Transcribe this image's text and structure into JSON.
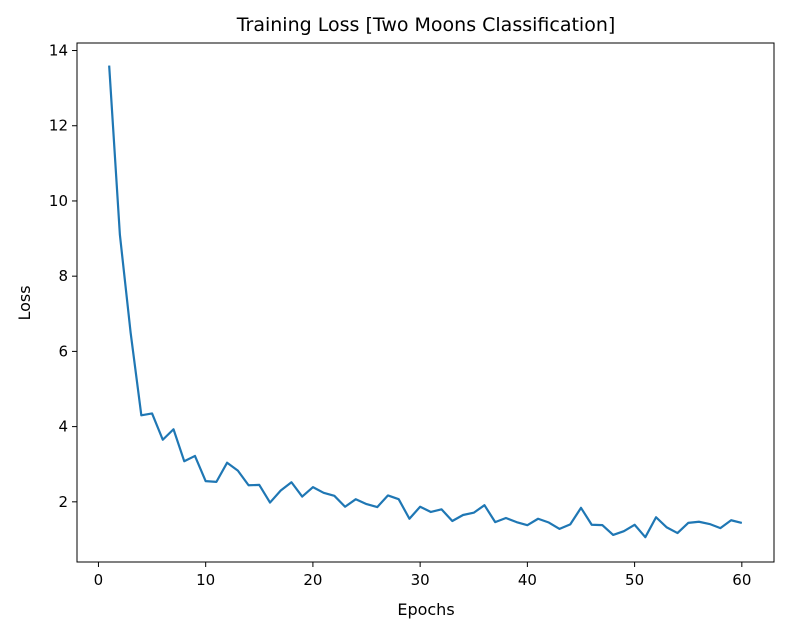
{
  "chart_data": {
    "type": "line",
    "title": "Training Loss [Two Moons Classification]",
    "xlabel": "Epochs",
    "ylabel": "Loss",
    "xlim": [
      -2.0,
      63.0
    ],
    "ylim": [
      0.4,
      14.2
    ],
    "xticks": [
      0,
      10,
      20,
      30,
      40,
      50,
      60
    ],
    "yticks": [
      2,
      4,
      6,
      8,
      10,
      12,
      14
    ],
    "grid": false,
    "series": [
      {
        "color": "#1f77b4",
        "x": [
          1,
          2,
          3,
          4,
          5,
          6,
          7,
          8,
          9,
          10,
          11,
          12,
          13,
          14,
          15,
          16,
          17,
          18,
          19,
          20,
          21,
          22,
          23,
          24,
          25,
          26,
          27,
          28,
          29,
          30,
          31,
          32,
          33,
          34,
          35,
          36,
          37,
          38,
          39,
          40,
          41,
          42,
          43,
          44,
          45,
          46,
          47,
          48,
          49,
          50,
          51,
          52,
          53,
          54,
          55,
          56,
          57,
          58,
          59,
          60
        ],
        "values": [
          13.6,
          9.1,
          6.5,
          4.3,
          4.35,
          3.65,
          3.93,
          3.08,
          3.22,
          2.55,
          2.53,
          3.04,
          2.83,
          2.44,
          2.45,
          1.98,
          2.3,
          2.52,
          2.14,
          2.39,
          2.24,
          2.16,
          1.87,
          2.07,
          1.94,
          1.86,
          2.17,
          2.07,
          1.55,
          1.87,
          1.73,
          1.8,
          1.49,
          1.65,
          1.71,
          1.91,
          1.46,
          1.57,
          1.46,
          1.38,
          1.55,
          1.45,
          1.28,
          1.4,
          1.84,
          1.39,
          1.38,
          1.12,
          1.22,
          1.39,
          1.06,
          1.59,
          1.32,
          1.17,
          1.44,
          1.47,
          1.41,
          1.3,
          1.51,
          1.44
        ]
      }
    ]
  }
}
